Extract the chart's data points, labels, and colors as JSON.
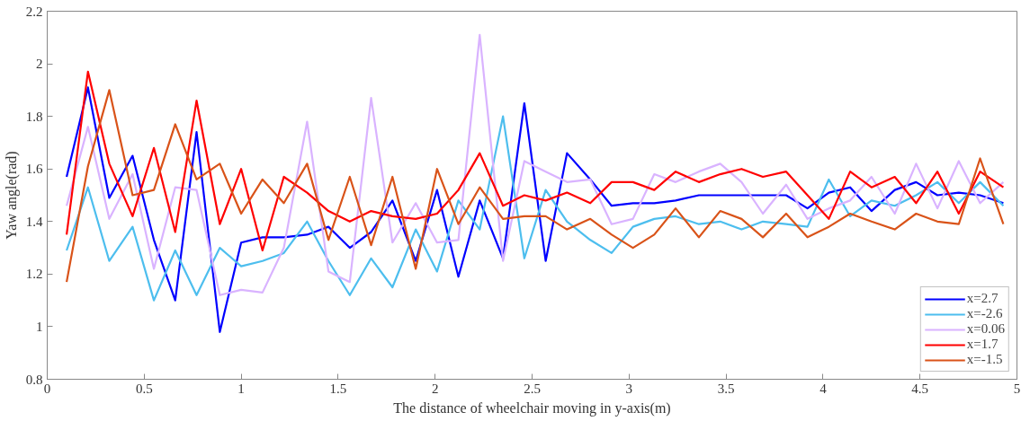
{
  "chart_data": {
    "type": "line",
    "xlabel": "The distance of wheelchair moving in y-axis(m)",
    "ylabel": "Yaw angle(rad)",
    "x": [
      0.1,
      0.21,
      0.32,
      0.44,
      0.55,
      0.66,
      0.77,
      0.89,
      1.0,
      1.11,
      1.22,
      1.34,
      1.45,
      1.56,
      1.67,
      1.78,
      1.9,
      2.01,
      2.12,
      2.23,
      2.35,
      2.46,
      2.57,
      2.68,
      2.8,
      2.91,
      3.02,
      3.13,
      3.24,
      3.36,
      3.47,
      3.58,
      3.69,
      3.81,
      3.92,
      4.03,
      4.14,
      4.25,
      4.37,
      4.48,
      4.59,
      4.7,
      4.81,
      4.93
    ],
    "series": [
      {
        "name": "x=2.7",
        "color": "#0000ff",
        "values": [
          1.57,
          1.91,
          1.49,
          1.65,
          1.33,
          1.1,
          1.74,
          0.98,
          1.32,
          1.34,
          1.34,
          1.35,
          1.38,
          1.3,
          1.36,
          1.48,
          1.25,
          1.52,
          1.19,
          1.48,
          1.26,
          1.85,
          1.25,
          1.66,
          1.56,
          1.46,
          1.47,
          1.47,
          1.48,
          1.5,
          1.5,
          1.5,
          1.5,
          1.5,
          1.45,
          1.51,
          1.53,
          1.44,
          1.52,
          1.55,
          1.5,
          1.51,
          1.5,
          1.47
        ]
      },
      {
        "name": "x=-2.6",
        "color": "#4dbeee",
        "values": [
          1.29,
          1.53,
          1.25,
          1.38,
          1.1,
          1.29,
          1.12,
          1.3,
          1.23,
          1.25,
          1.28,
          1.4,
          1.25,
          1.12,
          1.26,
          1.15,
          1.37,
          1.21,
          1.48,
          1.37,
          1.8,
          1.26,
          1.52,
          1.4,
          1.33,
          1.28,
          1.38,
          1.41,
          1.42,
          1.39,
          1.4,
          1.37,
          1.4,
          1.39,
          1.38,
          1.56,
          1.42,
          1.48,
          1.46,
          1.5,
          1.55,
          1.47,
          1.55,
          1.46
        ]
      },
      {
        "name": "x=0.06",
        "color": "#d9b3ff",
        "values": [
          1.46,
          1.76,
          1.41,
          1.58,
          1.22,
          1.53,
          1.52,
          1.12,
          1.14,
          1.13,
          1.3,
          1.78,
          1.21,
          1.17,
          1.87,
          1.32,
          1.47,
          1.32,
          1.33,
          2.11,
          1.25,
          1.63,
          1.59,
          1.55,
          1.56,
          1.39,
          1.41,
          1.58,
          1.55,
          1.59,
          1.62,
          1.55,
          1.43,
          1.54,
          1.41,
          1.45,
          1.48,
          1.57,
          1.43,
          1.62,
          1.45,
          1.63,
          1.47,
          1.55
        ]
      },
      {
        "name": "x=1.7",
        "color": "#ff0000",
        "values": [
          1.35,
          1.97,
          1.62,
          1.42,
          1.68,
          1.36,
          1.86,
          1.39,
          1.6,
          1.29,
          1.57,
          1.51,
          1.44,
          1.4,
          1.44,
          1.42,
          1.41,
          1.43,
          1.52,
          1.66,
          1.46,
          1.5,
          1.48,
          1.51,
          1.47,
          1.55,
          1.55,
          1.52,
          1.59,
          1.55,
          1.58,
          1.6,
          1.57,
          1.59,
          1.5,
          1.41,
          1.59,
          1.53,
          1.57,
          1.47,
          1.59,
          1.43,
          1.59,
          1.53
        ]
      },
      {
        "name": "x=-1.5",
        "color": "#d95319",
        "values": [
          1.17,
          1.61,
          1.9,
          1.5,
          1.52,
          1.77,
          1.56,
          1.62,
          1.43,
          1.56,
          1.47,
          1.62,
          1.33,
          1.57,
          1.31,
          1.57,
          1.22,
          1.6,
          1.39,
          1.53,
          1.41,
          1.42,
          1.42,
          1.37,
          1.41,
          1.35,
          1.3,
          1.35,
          1.45,
          1.34,
          1.44,
          1.41,
          1.34,
          1.43,
          1.34,
          1.38,
          1.43,
          1.4,
          1.37,
          1.43,
          1.4,
          1.39,
          1.64,
          1.39
        ]
      }
    ],
    "xlim": [
      0,
      5
    ],
    "xticks": [
      0,
      0.5,
      1,
      1.5,
      2,
      2.5,
      3,
      3.5,
      4,
      4.5,
      5
    ],
    "ylim": [
      0.8,
      2.2
    ],
    "yticks": [
      0.8,
      1,
      1.2,
      1.4,
      1.6,
      1.8,
      2,
      2.2
    ],
    "grid": false,
    "legend": "bottom right",
    "line_style": "solid",
    "marker": "none"
  }
}
